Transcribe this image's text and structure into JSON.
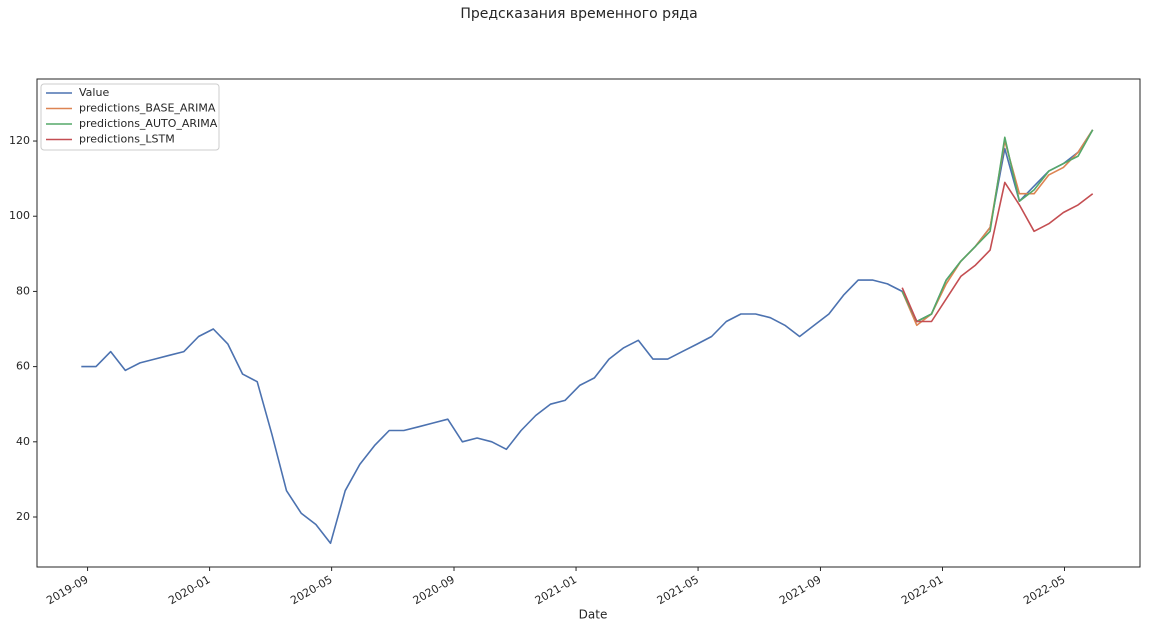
{
  "chart_data": {
    "type": "line",
    "title": "Предсказания временного ряда",
    "x_label": "Date",
    "x": [
      2019.65,
      2019.69,
      2019.73,
      2019.77,
      2019.81,
      2019.85,
      2019.89,
      2019.93,
      2019.97,
      2020.01,
      2020.05,
      2020.09,
      2020.13,
      2020.17,
      2020.21,
      2020.25,
      2020.29,
      2020.33,
      2020.37,
      2020.41,
      2020.45,
      2020.49,
      2020.53,
      2020.57,
      2020.61,
      2020.65,
      2020.69,
      2020.73,
      2020.77,
      2020.81,
      2020.85,
      2020.89,
      2020.93,
      2020.97,
      2021.01,
      2021.05,
      2021.09,
      2021.13,
      2021.17,
      2021.21,
      2021.25,
      2021.29,
      2021.33,
      2021.37,
      2021.41,
      2021.45,
      2021.49,
      2021.53,
      2021.57,
      2021.61,
      2021.65,
      2021.69,
      2021.73,
      2021.77,
      2021.81,
      2021.85,
      2021.89,
      2021.93,
      2021.97,
      2022.01,
      2022.05,
      2022.09,
      2022.13,
      2022.17,
      2022.21,
      2022.25,
      2022.29,
      2022.33,
      2022.37,
      2022.41
    ],
    "series": [
      {
        "name": "Value",
        "color": "#4c72b0",
        "values": [
          60,
          60,
          64,
          59,
          61,
          62,
          63,
          64,
          68,
          70,
          66,
          58,
          56,
          42,
          27,
          21,
          18,
          13,
          27,
          34,
          39,
          43,
          43,
          44,
          45,
          46,
          40,
          41,
          40,
          38,
          43,
          47,
          50,
          51,
          55,
          57,
          62,
          65,
          67,
          62,
          62,
          64,
          66,
          68,
          72,
          74,
          74,
          73,
          71,
          68,
          71,
          74,
          79,
          83,
          83,
          82,
          80,
          72,
          74,
          83,
          88,
          92,
          97,
          118,
          104,
          108,
          112,
          114,
          117,
          123
        ]
      },
      {
        "name": "predictions_BASE_ARIMA",
        "color": "#dd8452",
        "values": [
          null,
          null,
          null,
          null,
          null,
          null,
          null,
          null,
          null,
          null,
          null,
          null,
          null,
          null,
          null,
          null,
          null,
          null,
          null,
          null,
          null,
          null,
          null,
          null,
          null,
          null,
          null,
          null,
          null,
          null,
          null,
          null,
          null,
          null,
          null,
          null,
          null,
          null,
          null,
          null,
          null,
          null,
          null,
          null,
          null,
          null,
          null,
          null,
          null,
          null,
          null,
          null,
          null,
          null,
          null,
          null,
          80,
          71,
          74,
          82,
          88,
          92,
          97,
          120,
          106,
          106,
          111,
          113,
          117,
          123
        ]
      },
      {
        "name": "predictions_AUTO_ARIMA",
        "color": "#55a868",
        "values": [
          null,
          null,
          null,
          null,
          null,
          null,
          null,
          null,
          null,
          null,
          null,
          null,
          null,
          null,
          null,
          null,
          null,
          null,
          null,
          null,
          null,
          null,
          null,
          null,
          null,
          null,
          null,
          null,
          null,
          null,
          null,
          null,
          null,
          null,
          null,
          null,
          null,
          null,
          null,
          null,
          null,
          null,
          null,
          null,
          null,
          null,
          null,
          null,
          null,
          null,
          null,
          null,
          null,
          null,
          null,
          null,
          80,
          72,
          74,
          83,
          88,
          92,
          96,
          121,
          104,
          107,
          112,
          114,
          116,
          123
        ]
      },
      {
        "name": "predictions_LSTM",
        "color": "#c44e52",
        "values": [
          null,
          null,
          null,
          null,
          null,
          null,
          null,
          null,
          null,
          null,
          null,
          null,
          null,
          null,
          null,
          null,
          null,
          null,
          null,
          null,
          null,
          null,
          null,
          null,
          null,
          null,
          null,
          null,
          null,
          null,
          null,
          null,
          null,
          null,
          null,
          null,
          null,
          null,
          null,
          null,
          null,
          null,
          null,
          null,
          null,
          null,
          null,
          null,
          null,
          null,
          null,
          null,
          null,
          null,
          null,
          null,
          81,
          72,
          72,
          78,
          84,
          87,
          91,
          109,
          103,
          96,
          98,
          101,
          103,
          106
        ]
      }
    ],
    "xlim": [
      2019.529,
      2022.539
    ],
    "xticks": [
      {
        "value": 2019.667,
        "label": "2019-09"
      },
      {
        "value": 2020.0,
        "label": "2020-01"
      },
      {
        "value": 2020.333,
        "label": "2020-05"
      },
      {
        "value": 2020.667,
        "label": "2020-09"
      },
      {
        "value": 2021.0,
        "label": "2021-01"
      },
      {
        "value": 2021.333,
        "label": "2021-05"
      },
      {
        "value": 2021.667,
        "label": "2021-09"
      },
      {
        "value": 2022.0,
        "label": "2022-01"
      },
      {
        "value": 2022.333,
        "label": "2022-05"
      }
    ],
    "ylim": [
      6.7,
      136.5
    ],
    "yticks": [
      20,
      40,
      60,
      80,
      100,
      120
    ],
    "grid": false,
    "legend": "upper left"
  }
}
